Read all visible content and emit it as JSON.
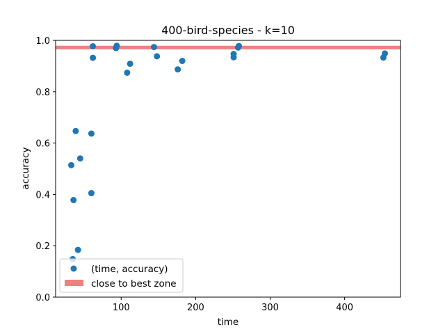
{
  "chart_data": {
    "type": "scatter",
    "title": "400-bird-species - k=10",
    "xlabel": "time",
    "ylabel": "accuracy",
    "xlim": [
      12,
      475
    ],
    "ylim": [
      0.0,
      1.0
    ],
    "xticks": [
      100,
      200,
      300,
      400
    ],
    "xtick_labels": [
      "100",
      "200",
      "300",
      "400"
    ],
    "yticks": [
      0.0,
      0.2,
      0.4,
      0.6,
      0.8,
      1.0
    ],
    "ytick_labels": [
      "0.0",
      "0.2",
      "0.4",
      "0.6",
      "0.8",
      "1.0"
    ],
    "grid": false,
    "legend_position": "lower-left",
    "best_zone": {
      "label": "close to best zone",
      "y_min": 0.965,
      "y_max": 0.979,
      "color": "#f08080"
    },
    "series": [
      {
        "name": "(time, accuracy)",
        "color": "#1f77b4",
        "x": [
          33,
          35,
          36,
          39,
          42,
          45,
          60,
          60,
          62,
          62,
          93,
          94,
          108,
          112,
          144,
          148,
          176,
          182,
          251,
          251,
          257,
          258,
          452,
          454
        ],
        "y": [
          0.514,
          0.148,
          0.378,
          0.647,
          0.184,
          0.54,
          0.637,
          0.405,
          0.977,
          0.932,
          0.97,
          0.979,
          0.874,
          0.909,
          0.974,
          0.938,
          0.887,
          0.92,
          0.947,
          0.934,
          0.972,
          0.978,
          0.933,
          0.949
        ]
      }
    ]
  }
}
